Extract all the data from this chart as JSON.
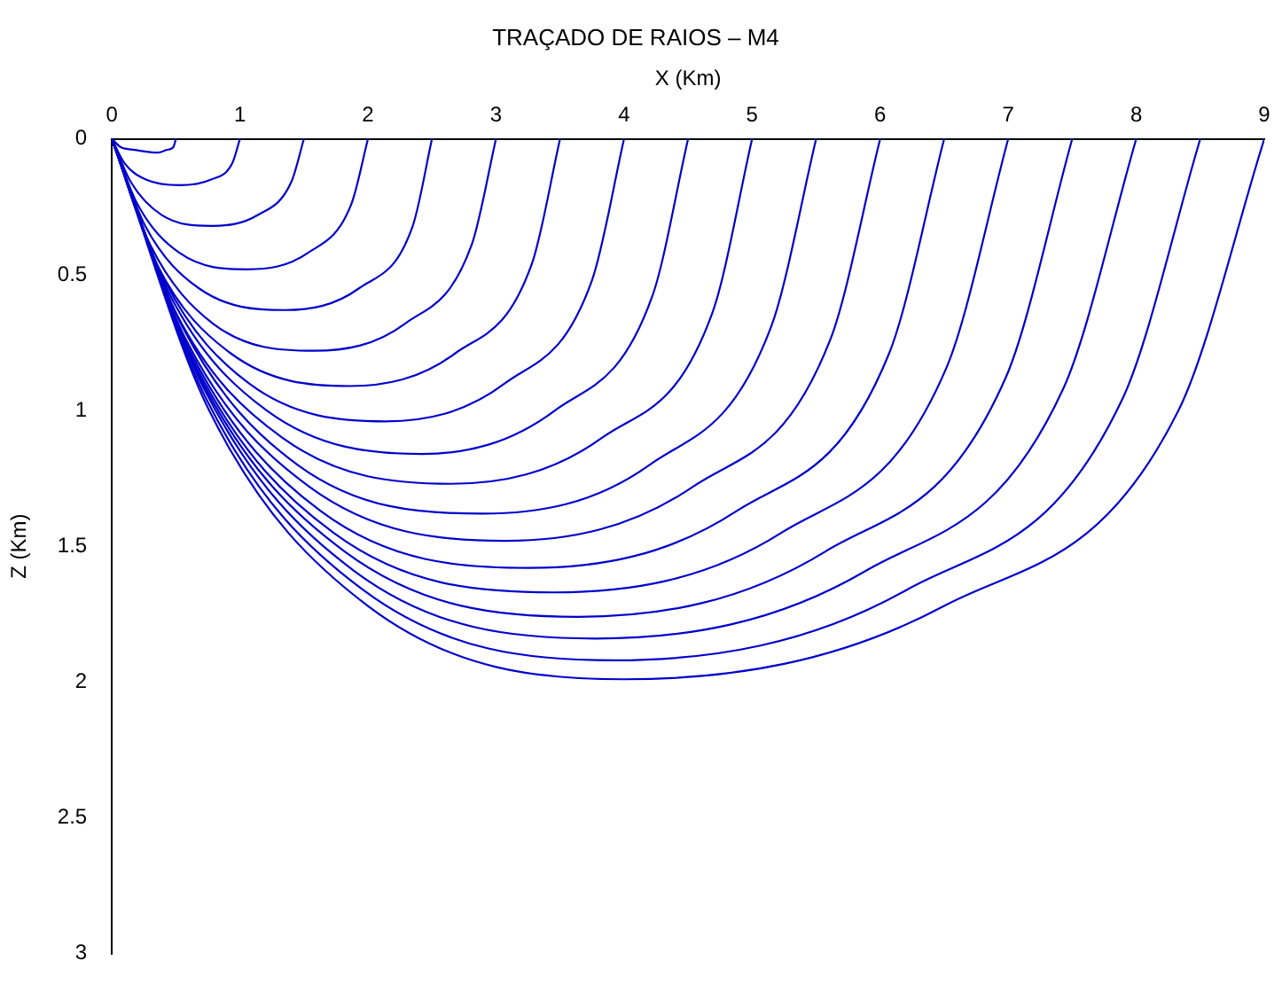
{
  "chart_data": {
    "type": "line",
    "title": "TRAÇADO DE RAIOS – M4",
    "xlabel": "X (Km)",
    "ylabel": "Z (Km)",
    "xlim": [
      0,
      9
    ],
    "xticks": [
      0,
      1,
      2,
      3,
      4,
      5,
      6,
      7,
      8,
      9
    ],
    "ylim": [
      3,
      0
    ],
    "yticks": [
      0,
      0.5,
      1,
      1.5,
      2,
      2.5,
      3
    ],
    "grid": false,
    "legend": false,
    "marker": "none",
    "line_style": "solid",
    "series": [
      {
        "color": "#0000cc",
        "x": [
          0,
          0.07,
          0.18,
          0.36,
          0.43,
          0.48,
          0.5
        ],
        "values": [
          0,
          0.03,
          0.04,
          0.05,
          0.04,
          0.03,
          0
        ]
      },
      {
        "color": "#0000cc",
        "x": [
          0,
          0.1,
          0.27,
          0.53,
          0.77,
          0.94,
          1
        ],
        "values": [
          0,
          0.09,
          0.15,
          0.17,
          0.15,
          0.09,
          0
        ]
      },
      {
        "color": "#0000cc",
        "x": [
          0,
          0.15,
          0.39,
          0.78,
          1.14,
          1.4,
          1.5
        ],
        "values": [
          0,
          0.16,
          0.28,
          0.32,
          0.28,
          0.16,
          0
        ]
      },
      {
        "color": "#0000cc",
        "x": [
          0,
          0.2,
          0.53,
          1.06,
          1.53,
          1.87,
          2
        ],
        "values": [
          0,
          0.24,
          0.42,
          0.48,
          0.42,
          0.24,
          0
        ]
      },
      {
        "color": "#0000cc",
        "x": [
          0,
          0.26,
          0.68,
          1.35,
          1.93,
          2.35,
          2.5
        ],
        "values": [
          0,
          0.32,
          0.55,
          0.63,
          0.55,
          0.32,
          0
        ]
      },
      {
        "color": "#0000cc",
        "x": [
          0,
          0.3,
          0.79,
          1.58,
          2.29,
          2.81,
          3
        ],
        "values": [
          0,
          0.39,
          0.68,
          0.78,
          0.68,
          0.39,
          0
        ]
      },
      {
        "color": "#0000cc",
        "x": [
          0,
          0.35,
          0.93,
          1.86,
          2.68,
          3.28,
          3.5
        ],
        "values": [
          0,
          0.46,
          0.79,
          0.91,
          0.79,
          0.46,
          0
        ]
      },
      {
        "color": "#0000cc",
        "x": [
          0,
          0.41,
          1.07,
          2.14,
          3.07,
          3.75,
          4
        ],
        "values": [
          0,
          0.52,
          0.9,
          1.04,
          0.9,
          0.52,
          0
        ]
      },
      {
        "color": "#0000cc",
        "x": [
          0,
          0.46,
          1.21,
          2.42,
          3.46,
          4.22,
          4.5
        ],
        "values": [
          0,
          0.58,
          1.0,
          1.16,
          1.0,
          0.58,
          0
        ]
      },
      {
        "color": "#0000cc",
        "x": [
          0,
          0.5,
          1.33,
          2.65,
          3.83,
          4.69,
          5
        ],
        "values": [
          0,
          0.64,
          1.1,
          1.27,
          1.1,
          0.64,
          0
        ]
      },
      {
        "color": "#0000cc",
        "x": [
          0,
          0.55,
          1.45,
          2.89,
          4.2,
          5.15,
          5.5
        ],
        "values": [
          0,
          0.69,
          1.2,
          1.38,
          1.2,
          0.69,
          0
        ]
      },
      {
        "color": "#0000cc",
        "x": [
          0,
          0.58,
          1.54,
          3.07,
          4.54,
          5.61,
          6
        ],
        "values": [
          0,
          0.74,
          1.28,
          1.48,
          1.28,
          0.74,
          0
        ]
      },
      {
        "color": "#0000cc",
        "x": [
          0,
          0.62,
          1.63,
          3.26,
          4.88,
          6.07,
          6.5
        ],
        "values": [
          0,
          0.79,
          1.37,
          1.58,
          1.37,
          0.79,
          0
        ]
      },
      {
        "color": "#0000cc",
        "x": [
          0,
          0.66,
          1.73,
          3.45,
          5.23,
          6.52,
          7
        ],
        "values": [
          0,
          0.84,
          1.45,
          1.67,
          1.45,
          0.84,
          0
        ]
      },
      {
        "color": "#0000cc",
        "x": [
          0,
          0.69,
          1.82,
          3.64,
          5.57,
          6.98,
          7.5
        ],
        "values": [
          0,
          0.88,
          1.52,
          1.76,
          1.52,
          0.88,
          0
        ]
      },
      {
        "color": "#0000cc",
        "x": [
          0,
          0.72,
          1.89,
          3.78,
          5.89,
          7.43,
          8
        ],
        "values": [
          0,
          0.92,
          1.59,
          1.84,
          1.59,
          0.92,
          0
        ]
      },
      {
        "color": "#0000cc",
        "x": [
          0,
          0.74,
          1.96,
          3.92,
          6.21,
          7.89,
          8.5
        ],
        "values": [
          0,
          0.96,
          1.66,
          1.92,
          1.66,
          0.96,
          0
        ]
      },
      {
        "color": "#0000cc",
        "x": [
          0,
          0.76,
          2.0,
          4.0,
          6.5,
          8.33,
          9
        ],
        "values": [
          0,
          1.0,
          1.72,
          1.99,
          1.72,
          1.0,
          0
        ]
      }
    ]
  }
}
